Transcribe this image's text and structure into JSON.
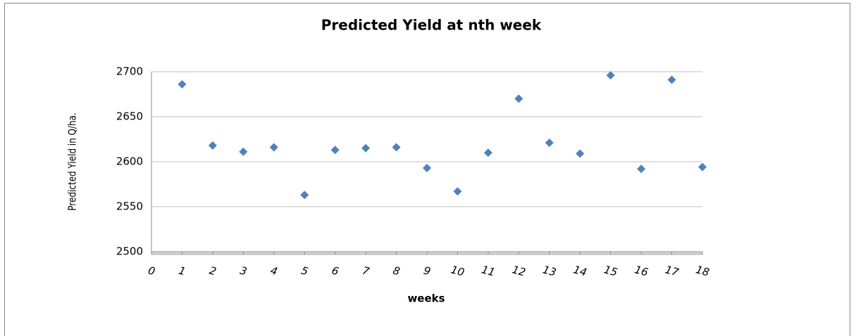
{
  "chart_data": {
    "type": "scatter",
    "title": "Predicted Yield at nth week",
    "xlabel": "weeks",
    "ylabel": "Predicted Yield in Q/ha.",
    "series": [
      {
        "name": "Predicted Yield",
        "color": "#4f81bd",
        "x": [
          1,
          2,
          3,
          4,
          5,
          6,
          7,
          8,
          9,
          10,
          11,
          12,
          13,
          14,
          15,
          16,
          17,
          18
        ],
        "values": [
          2686,
          2618,
          2611,
          2616,
          2563,
          2613,
          2615,
          2616,
          2593,
          2567,
          2610,
          2670,
          2621,
          2609,
          2696,
          2592,
          2691,
          2594
        ]
      }
    ],
    "xlim": [
      0,
      18
    ],
    "xticks": [
      0,
      1,
      2,
      3,
      4,
      5,
      6,
      7,
      8,
      9,
      10,
      11,
      12,
      13,
      14,
      15,
      16,
      17,
      18
    ],
    "ylim": [
      2500,
      2700
    ],
    "yticks": [
      2500,
      2550,
      2600,
      2650,
      2700
    ],
    "grid": true
  }
}
